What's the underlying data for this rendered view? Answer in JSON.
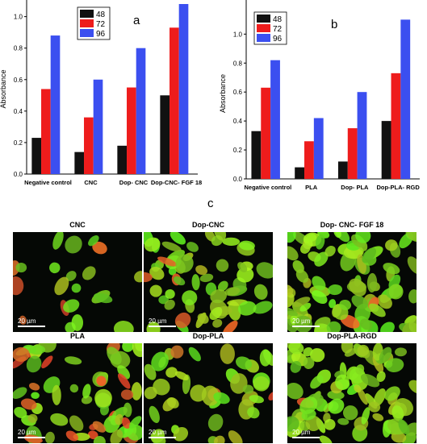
{
  "chart_data": [
    {
      "type": "bar",
      "panel_letter": "a",
      "ylabel": "Absorbance",
      "categories": [
        "Negative control",
        "CNC",
        "Dop- CNC",
        "Dop-CNC- FGF 18"
      ],
      "ylim": [
        0,
        1.08
      ],
      "yticks": [
        "0.0",
        "0.2",
        "0.4",
        "0.6",
        "0.8",
        "1.0"
      ],
      "legend_position": "top-left",
      "series": [
        {
          "name": "48",
          "color": "#111111",
          "values": [
            0.23,
            0.14,
            0.18,
            0.5
          ]
        },
        {
          "name": "72",
          "color": "#ee1c1c",
          "values": [
            0.54,
            0.36,
            0.55,
            0.93
          ]
        },
        {
          "name": "96",
          "color": "#3b4ff0",
          "values": [
            0.88,
            0.6,
            0.8,
            1.08
          ]
        }
      ]
    },
    {
      "type": "bar",
      "panel_letter": "b",
      "ylabel": "Absorbance",
      "categories": [
        "Negative control",
        "PLA",
        "Dop- PLA",
        "Dop-PLA- RGD"
      ],
      "ylim": [
        0,
        1.18
      ],
      "yticks": [
        "0.0",
        "0.2",
        "0.4",
        "0.6",
        "0.8",
        "1.0"
      ],
      "legend_position": "top-left",
      "series": [
        {
          "name": "48",
          "color": "#111111",
          "values": [
            0.33,
            0.08,
            0.12,
            0.4
          ]
        },
        {
          "name": "72",
          "color": "#ee1c1c",
          "values": [
            0.63,
            0.26,
            0.35,
            0.73
          ]
        },
        {
          "name": "96",
          "color": "#3b4ff0",
          "values": [
            0.82,
            0.42,
            0.6,
            1.1
          ]
        }
      ]
    }
  ],
  "micrographs": {
    "panel_letter": "c",
    "scale_label": "20 µm",
    "panels": [
      {
        "title": "CNC",
        "density": 0.12,
        "red": 0.25
      },
      {
        "title": "Dop-CNC",
        "density": 0.55,
        "red": 0.05
      },
      {
        "title": "Dop- CNC- FGF 18",
        "density": 0.9,
        "red": 0.02
      },
      {
        "title": "PLA",
        "density": 0.6,
        "red": 0.35
      },
      {
        "title": "Dop-PLA",
        "density": 0.35,
        "red": 0.08
      },
      {
        "title": "Dop-PLA-RGD",
        "density": 0.85,
        "red": 0.04
      }
    ]
  }
}
